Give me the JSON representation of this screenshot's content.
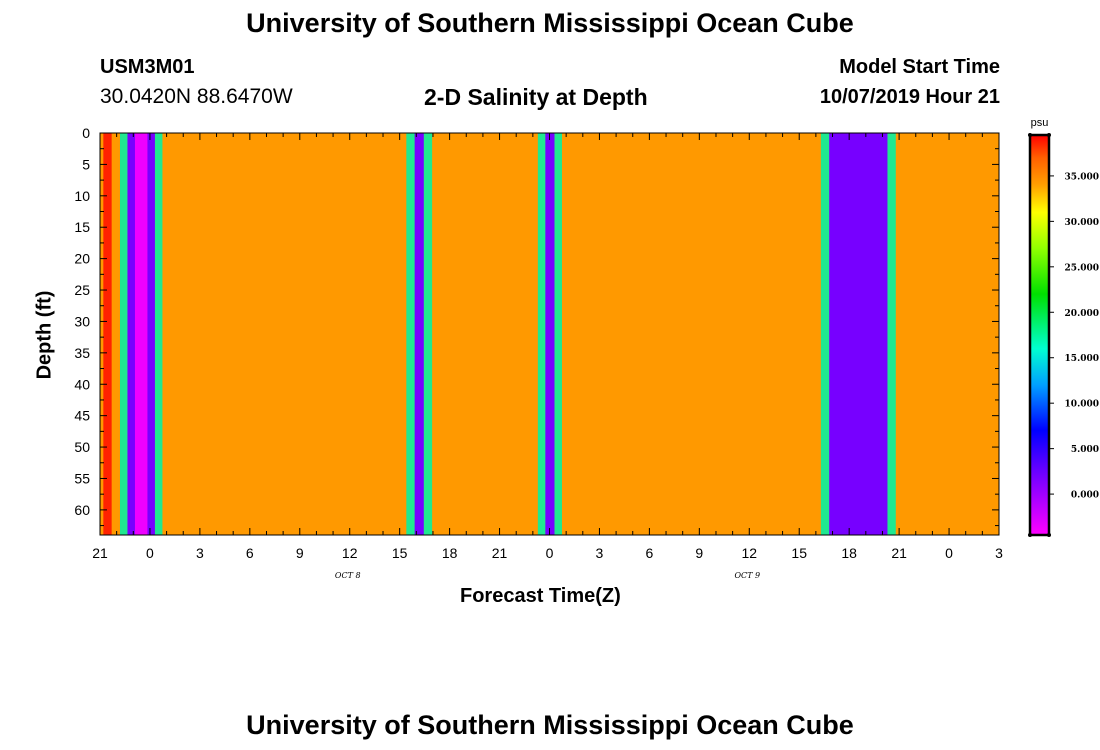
{
  "header": {
    "title": "University of Southern Mississippi Ocean Cube",
    "station_id": "USM3M01",
    "location": "30.0420N 88.6470W",
    "plot_title": "2-D Salinity at Depth",
    "model_start_label": "Model Start Time",
    "model_start_value": "10/07/2019 Hour 21",
    "footer_title": "University of Southern Mississippi Ocean Cube"
  },
  "chart_data": {
    "type": "heatmap",
    "title": "2-D Salinity at Depth",
    "xlabel": "Forecast Time(Z)",
    "ylabel": "Depth (ft)",
    "x_tick_labels": [
      "21",
      "0",
      "3",
      "6",
      "9",
      "12",
      "15",
      "18",
      "21",
      "0",
      "3",
      "6",
      "9",
      "12",
      "15",
      "18",
      "21",
      "0",
      "3"
    ],
    "x_hours_start": 0,
    "x_hours_end": 54,
    "date_labels": [
      {
        "label": "OCT 8",
        "hour": 15
      },
      {
        "label": "OCT 9",
        "hour": 39
      }
    ],
    "y_tick_labels": [
      "0",
      "5",
      "10",
      "15",
      "20",
      "25",
      "30",
      "35",
      "40",
      "45",
      "50",
      "55",
      "60"
    ],
    "ylim": [
      0,
      64
    ],
    "colorbar": {
      "unit": "psu",
      "labels": [
        "35.000",
        "30.000",
        "25.000",
        "20.000",
        "15.000",
        "10.000",
        "5.000",
        "0.000"
      ],
      "label_values": [
        35,
        30,
        25,
        20,
        15,
        10,
        5,
        0
      ],
      "range": [
        -4.5,
        39.5
      ],
      "stops": [
        {
          "v": -4.5,
          "c": "#ff00ff"
        },
        {
          "v": 2.5,
          "c": "#6a00ff"
        },
        {
          "v": 7,
          "c": "#0000ff"
        },
        {
          "v": 12,
          "c": "#00a0ff"
        },
        {
          "v": 16,
          "c": "#00ffd0"
        },
        {
          "v": 22,
          "c": "#00e000"
        },
        {
          "v": 27,
          "c": "#90ff00"
        },
        {
          "v": 31,
          "c": "#ffff00"
        },
        {
          "v": 34,
          "c": "#ffa000"
        },
        {
          "v": 37,
          "c": "#ff6000"
        },
        {
          "v": 39.5,
          "c": "#ff0000"
        }
      ]
    },
    "columns": [
      {
        "x0": 0.0,
        "x1": 0.2,
        "color": "#ff9900",
        "salinity": 34.5
      },
      {
        "x0": 0.2,
        "x1": 0.7,
        "color": "#ff2200",
        "salinity": 39
      },
      {
        "x0": 0.7,
        "x1": 1.2,
        "color": "#ff9900",
        "salinity": 34.5
      },
      {
        "x0": 1.2,
        "x1": 1.65,
        "color": "#20e890",
        "salinity": 18
      },
      {
        "x0": 1.65,
        "x1": 2.1,
        "color": "#7700ff",
        "salinity": 2
      },
      {
        "x0": 2.1,
        "x1": 2.85,
        "color": "#ee00ff",
        "salinity": -3
      },
      {
        "x0": 2.85,
        "x1": 3.3,
        "color": "#7700ff",
        "salinity": 2
      },
      {
        "x0": 3.3,
        "x1": 3.75,
        "color": "#20e890",
        "salinity": 18
      },
      {
        "x0": 3.75,
        "x1": 18.4,
        "color": "#ff9900",
        "salinity": 34.5
      },
      {
        "x0": 18.4,
        "x1": 18.9,
        "color": "#20e890",
        "salinity": 18
      },
      {
        "x0": 18.9,
        "x1": 19.45,
        "color": "#7700ff",
        "salinity": 2
      },
      {
        "x0": 19.45,
        "x1": 19.95,
        "color": "#20e890",
        "salinity": 18
      },
      {
        "x0": 19.95,
        "x1": 26.3,
        "color": "#ff9900",
        "salinity": 34.5
      },
      {
        "x0": 26.3,
        "x1": 26.75,
        "color": "#20e890",
        "salinity": 18
      },
      {
        "x0": 26.75,
        "x1": 27.3,
        "color": "#7700ff",
        "salinity": 2
      },
      {
        "x0": 27.3,
        "x1": 27.75,
        "color": "#20e890",
        "salinity": 18
      },
      {
        "x0": 27.75,
        "x1": 43.3,
        "color": "#ff9900",
        "salinity": 34.5
      },
      {
        "x0": 43.3,
        "x1": 43.8,
        "color": "#20e890",
        "salinity": 18
      },
      {
        "x0": 43.8,
        "x1": 47.3,
        "color": "#7700ff",
        "salinity": 2
      },
      {
        "x0": 47.3,
        "x1": 47.8,
        "color": "#20e890",
        "salinity": 18
      },
      {
        "x0": 47.8,
        "x1": 54.0,
        "color": "#ff9900",
        "salinity": 34.5
      }
    ]
  }
}
